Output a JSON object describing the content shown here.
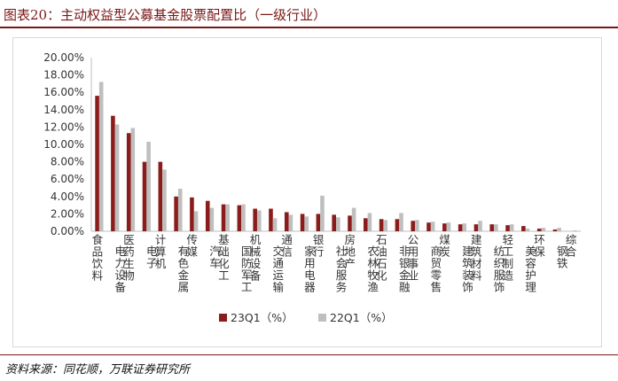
{
  "header": {
    "title": "图表20：主动权益型公募基金股票配置比（一级行业）"
  },
  "footer": {
    "source": "资料来源：同花顺，万联证券研究所"
  },
  "colors": {
    "s1": "#8b1c1c",
    "s2": "#bfbfbf",
    "axis": "#bfbfbf",
    "text": "#333333"
  },
  "chart_data": {
    "type": "bar",
    "title": "",
    "xlabel": "",
    "ylabel": "",
    "ylim": [
      0,
      20
    ],
    "yticks": [
      "0.00%",
      "2.00%",
      "4.00%",
      "6.00%",
      "8.00%",
      "10.00%",
      "12.00%",
      "14.00%",
      "16.00%",
      "18.00%",
      "20.00%"
    ],
    "grid": false,
    "legend": "bottom",
    "categories": [
      "食品饮料",
      "电力设备",
      "医药生物",
      "电子",
      "计算机",
      "有色金属",
      "传媒",
      "汽车",
      "基础化工",
      "国防军工",
      "机械设备",
      "交通运输",
      "通信",
      "家用电器",
      "银行",
      "社会服务",
      "房地产",
      "农林牧渔",
      "石油石化",
      "非银金融",
      "公用事业",
      "商贸零售",
      "煤炭",
      "建筑装饰",
      "建筑材料",
      "纺织服饰",
      "轻工制造",
      "美容护理",
      "环保",
      "钢铁",
      "综合"
    ],
    "series": [
      {
        "name": "23Q1（%）",
        "values": [
          15.6,
          13.3,
          11.3,
          8.0,
          8.0,
          4.0,
          3.9,
          3.5,
          3.1,
          3.0,
          2.6,
          2.6,
          2.2,
          2.0,
          2.0,
          1.9,
          1.8,
          1.5,
          1.4,
          1.4,
          1.2,
          1.0,
          0.9,
          0.8,
          0.8,
          0.8,
          0.7,
          0.6,
          0.3,
          0.2,
          0.0
        ]
      },
      {
        "name": "22Q1（%）",
        "values": [
          17.2,
          12.3,
          11.9,
          10.3,
          7.1,
          4.9,
          2.3,
          2.7,
          3.1,
          3.1,
          2.4,
          1.5,
          1.9,
          1.7,
          4.1,
          1.6,
          2.7,
          2.1,
          1.3,
          2.1,
          1.3,
          1.1,
          1.0,
          0.9,
          1.2,
          0.8,
          0.8,
          0.3,
          0.4,
          0.4,
          0.1
        ]
      }
    ]
  }
}
